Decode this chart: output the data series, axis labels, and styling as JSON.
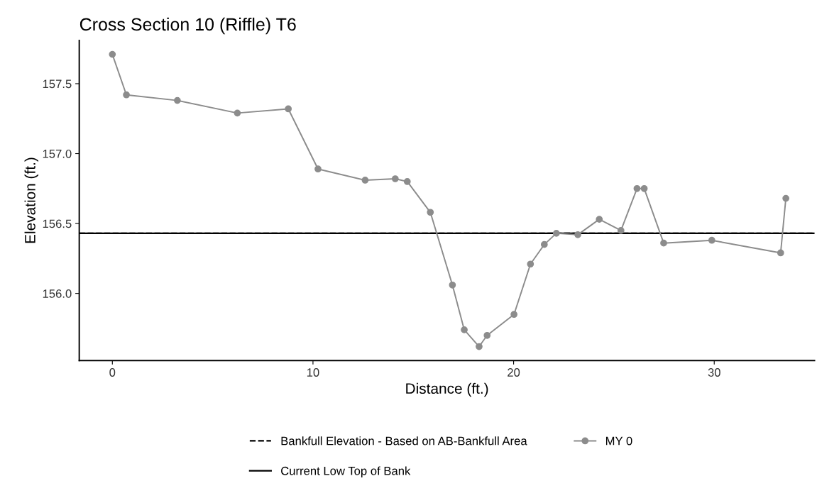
{
  "chart_data": {
    "type": "line",
    "title": "Cross Section 10 (Riffle) T6",
    "xlabel": "Distance (ft.)",
    "ylabel": "Elevation (ft.)",
    "x": [
      0,
      0.7,
      3.24,
      6.23,
      8.77,
      10.25,
      12.6,
      14.1,
      14.7,
      15.85,
      16.95,
      17.54,
      18.28,
      18.68,
      20.02,
      20.84,
      21.53,
      22.13,
      23.2,
      24.27,
      25.35,
      26.15,
      26.51,
      27.48,
      29.88,
      33.31,
      33.57
    ],
    "series": [
      {
        "name": "MY 0",
        "color": "#8c8c8c",
        "values": [
          157.71,
          157.42,
          157.38,
          157.29,
          157.32,
          156.89,
          156.81,
          156.82,
          156.8,
          156.58,
          156.06,
          155.74,
          155.62,
          155.7,
          155.85,
          156.21,
          156.35,
          156.43,
          156.42,
          156.53,
          156.45,
          156.75,
          156.75,
          156.36,
          156.38,
          156.29,
          156.68
        ]
      }
    ],
    "ref_lines": [
      {
        "axis": "y",
        "value": 156.43,
        "label": "Bankfull Elevation - Based on AB-Bankfull Area",
        "color": "#000000",
        "line_style": "dashed"
      },
      {
        "axis": "y",
        "value": 156.43,
        "label": "Current Low Top of Bank",
        "color": "#000000",
        "line_style": "solid"
      }
    ],
    "xlim": [
      -1.65,
      35.0
    ],
    "xticks": [
      0,
      10,
      20,
      30
    ],
    "ylim": [
      155.52,
      157.81
    ],
    "yticks": [
      {
        "value": 156.0,
        "label": "156.0"
      },
      156.5,
      {
        "value": 157.0,
        "label": "157.0"
      },
      157.5
    ],
    "marker": "circle",
    "line_style": "solid",
    "grid": false,
    "legend": "bottom"
  }
}
